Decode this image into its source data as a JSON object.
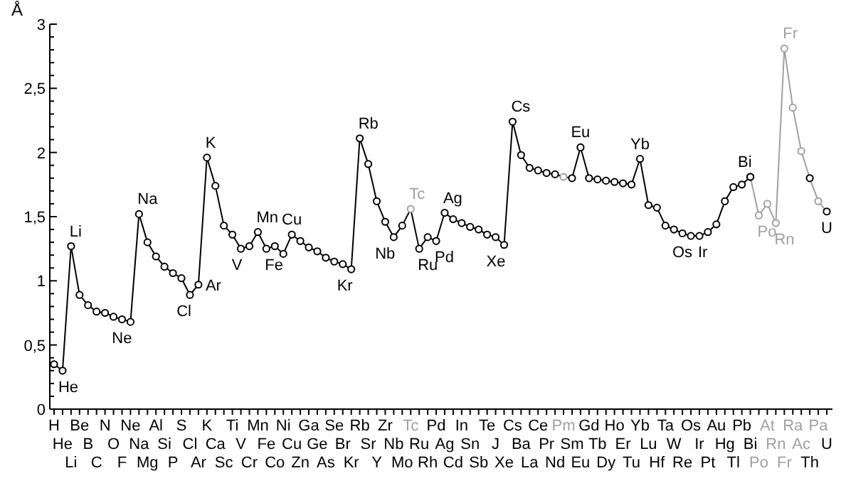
{
  "chart_data": {
    "type": "line",
    "ylabel": "Å",
    "categories": [
      "H",
      "He",
      "Li",
      "Be",
      "B",
      "C",
      "N",
      "O",
      "F",
      "Ne",
      "Na",
      "Mg",
      "Al",
      "Si",
      "P",
      "S",
      "Cl",
      "Ar",
      "K",
      "Ca",
      "Sc",
      "Ti",
      "V",
      "Cr",
      "Mn",
      "Fe",
      "Co",
      "Ni",
      "Cu",
      "Zn",
      "Ga",
      "Ge",
      "As",
      "Se",
      "Br",
      "Kr",
      "Rb",
      "Sr",
      "Y",
      "Zr",
      "Nb",
      "Mo",
      "Tc",
      "Ru",
      "Rh",
      "Pd",
      "Ag",
      "Cd",
      "In",
      "Sn",
      "Sb",
      "Te",
      "J",
      "Xe",
      "Cs",
      "Ba",
      "La",
      "Ce",
      "Pr",
      "Nd",
      "Pm",
      "Sm",
      "Eu",
      "Gd",
      "Tb",
      "Dy",
      "Ho",
      "Er",
      "Tu",
      "Yb",
      "Lu",
      "Hf",
      "Ta",
      "W",
      "Re",
      "Os",
      "Ir",
      "Pt",
      "Au",
      "Hg",
      "Tl",
      "Pb",
      "Bi",
      "Po",
      "At",
      "Rn",
      "Fr",
      "Ra",
      "Ac",
      "Th",
      "Pa",
      "U"
    ],
    "series": [
      {
        "color": "#000000",
        "values": [
          0.35,
          0.3,
          1.27,
          0.89,
          0.81,
          0.76,
          0.75,
          0.72,
          0.7,
          0.68,
          1.52,
          1.3,
          1.19,
          1.11,
          1.06,
          1.02,
          0.89,
          0.97,
          1.96,
          1.74,
          1.43,
          1.36,
          1.25,
          1.27,
          1.38,
          1.25,
          1.27,
          1.21,
          1.36,
          1.31,
          1.26,
          1.23,
          1.18,
          1.15,
          1.13,
          1.09,
          2.11,
          1.91,
          1.62,
          1.46,
          1.34,
          1.43,
          1.56,
          1.25,
          1.34,
          1.31,
          1.53,
          1.48,
          1.45,
          1.42,
          1.4,
          1.36,
          1.34,
          1.28,
          2.24,
          1.98,
          1.88,
          1.86,
          1.84,
          1.83,
          1.81,
          1.8,
          2.04,
          1.8,
          1.79,
          1.78,
          1.77,
          1.76,
          1.75,
          1.95,
          1.59,
          1.57,
          1.43,
          1.4,
          1.37,
          1.35,
          1.35,
          1.38,
          1.44,
          1.62,
          1.73,
          1.75,
          1.81,
          null,
          null,
          null,
          null,
          null,
          null,
          null,
          null,
          null
        ],
        "colors": [
          "#000000",
          "#000000",
          "#000000",
          "#000000",
          "#000000",
          "#000000",
          "#000000",
          "#000000",
          "#000000",
          "#000000",
          "#000000",
          "#000000",
          "#000000",
          "#000000",
          "#000000",
          "#000000",
          "#000000",
          "#000000",
          "#000000",
          "#000000",
          "#000000",
          "#000000",
          "#000000",
          "#000000",
          "#000000",
          "#000000",
          "#000000",
          "#000000",
          "#000000",
          "#000000",
          "#000000",
          "#000000",
          "#000000",
          "#000000",
          "#000000",
          "#000000",
          "#000000",
          "#000000",
          "#000000",
          "#000000",
          "#000000",
          "#000000",
          "#a0a0a0",
          "#000000",
          "#000000",
          "#000000",
          "#000000",
          "#000000",
          "#000000",
          "#000000",
          "#000000",
          "#000000",
          "#000000",
          "#000000",
          "#000000",
          "#000000",
          "#000000",
          "#000000",
          "#000000",
          "#000000",
          "#a0a0a0",
          "#000000",
          "#000000",
          "#000000",
          "#000000",
          "#000000",
          "#000000",
          "#000000",
          "#000000",
          "#000000",
          "#000000",
          "#000000",
          "#000000",
          "#000000",
          "#000000",
          "#000000",
          "#000000",
          "#000000",
          "#000000",
          "#000000",
          "#000000",
          "#000000",
          "#000000",
          null,
          null,
          null,
          null,
          null,
          null,
          null,
          null,
          null
        ]
      },
      {
        "color": "#a0a0a0",
        "values": [
          null,
          null,
          null,
          null,
          null,
          null,
          null,
          null,
          null,
          null,
          null,
          null,
          null,
          null,
          null,
          null,
          null,
          null,
          null,
          null,
          null,
          null,
          null,
          null,
          null,
          null,
          null,
          null,
          null,
          null,
          null,
          null,
          null,
          null,
          null,
          null,
          null,
          null,
          null,
          null,
          null,
          null,
          null,
          null,
          null,
          null,
          null,
          null,
          null,
          null,
          null,
          null,
          null,
          null,
          null,
          null,
          null,
          null,
          null,
          null,
          null,
          null,
          null,
          null,
          null,
          null,
          null,
          null,
          null,
          null,
          null,
          null,
          null,
          null,
          null,
          null,
          null,
          null,
          null,
          null,
          null,
          null,
          1.81,
          1.51,
          1.6,
          1.45,
          2.81,
          2.35,
          2.01,
          1.8,
          1.62,
          1.54
        ],
        "colors": [
          null,
          null,
          null,
          null,
          null,
          null,
          null,
          null,
          null,
          null,
          null,
          null,
          null,
          null,
          null,
          null,
          null,
          null,
          null,
          null,
          null,
          null,
          null,
          null,
          null,
          null,
          null,
          null,
          null,
          null,
          null,
          null,
          null,
          null,
          null,
          null,
          null,
          null,
          null,
          null,
          null,
          null,
          null,
          null,
          null,
          null,
          null,
          null,
          null,
          null,
          null,
          null,
          null,
          null,
          null,
          null,
          null,
          null,
          null,
          null,
          null,
          null,
          null,
          null,
          null,
          null,
          null,
          null,
          null,
          null,
          null,
          null,
          null,
          null,
          null,
          null,
          null,
          null,
          null,
          null,
          null,
          null,
          "#000000",
          "#a0a0a0",
          "#a0a0a0",
          "#a0a0a0",
          "#a0a0a0",
          "#a0a0a0",
          "#a0a0a0",
          "#000000",
          "#a0a0a0",
          "#000000"
        ]
      }
    ],
    "ylim": [
      0,
      3
    ],
    "yticks": [
      0,
      {
        "value": 0.1,
        "label": null
      },
      {
        "value": 0.2,
        "label": null
      },
      {
        "value": 0.3,
        "label": null
      },
      {
        "value": 0.4,
        "label": null
      },
      {
        "value": 0.5,
        "label": "0,5"
      },
      {
        "value": 0.6,
        "label": null
      },
      {
        "value": 0.7,
        "label": null
      },
      {
        "value": 0.8,
        "label": null
      },
      {
        "value": 0.9,
        "label": null
      },
      1,
      {
        "value": 1.1,
        "label": null
      },
      {
        "value": 1.2,
        "label": null
      },
      {
        "value": 1.3,
        "label": null
      },
      {
        "value": 1.4,
        "label": null
      },
      {
        "value": 1.5,
        "label": "1,5"
      },
      {
        "value": 1.6,
        "label": null
      },
      {
        "value": 1.7,
        "label": null
      },
      {
        "value": 1.8,
        "label": null
      },
      {
        "value": 1.9,
        "label": null
      },
      2,
      {
        "value": 2.1,
        "label": null
      },
      {
        "value": 2.2,
        "label": null
      },
      {
        "value": 2.3,
        "label": null
      },
      {
        "value": 2.4,
        "label": null
      },
      {
        "value": 2.5,
        "label": "2,5"
      },
      {
        "value": 2.6,
        "label": null
      },
      {
        "value": 2.7,
        "label": null
      },
      {
        "value": 2.8,
        "label": null
      },
      {
        "value": 2.9,
        "label": null
      },
      3
    ],
    "marker": "circle",
    "line_style": "solid",
    "grid": false,
    "legend": false,
    "annotations": [
      {
        "text": "He",
        "x": "He",
        "y": 0.3
      },
      {
        "text": "Li",
        "x": "Li",
        "y": 1.27
      },
      {
        "text": "Ne",
        "x": "Ne",
        "y": 0.68
      },
      {
        "text": "Na",
        "x": "Na",
        "y": 1.52
      },
      {
        "text": "Cl",
        "x": "Cl",
        "y": 0.89
      },
      {
        "text": "Ar",
        "x": "Ar",
        "y": 0.97
      },
      {
        "text": "K",
        "x": "K",
        "y": 1.96
      },
      {
        "text": "Mn",
        "x": "Mn",
        "y": 1.38
      },
      {
        "text": "V",
        "x": "V",
        "y": 1.25
      },
      {
        "text": "Fe",
        "x": "Fe",
        "y": 1.25
      },
      {
        "text": "Cu",
        "x": "Cu",
        "y": 1.36
      },
      {
        "text": "Rb",
        "x": "Rb",
        "y": 2.11
      },
      {
        "text": "Kr",
        "x": "Kr",
        "y": 1.09
      },
      {
        "text": "Tc",
        "x": "Tc",
        "y": 1.56
      },
      {
        "text": "Nb",
        "x": "Nb",
        "y": 1.34
      },
      {
        "text": "Ru",
        "x": "Ru",
        "y": 1.25
      },
      {
        "text": "Ag",
        "x": "Ag",
        "y": 1.53
      },
      {
        "text": "Pd",
        "x": "Pd",
        "y": 1.31
      },
      {
        "text": "Cs",
        "x": "Cs",
        "y": 2.24
      },
      {
        "text": "Xe",
        "x": "Xe",
        "y": 1.28
      },
      {
        "text": "Eu",
        "x": "Eu",
        "y": 2.04
      },
      {
        "text": "Yb",
        "x": "Yb",
        "y": 1.95
      },
      {
        "text": "Os",
        "x": "Os",
        "y": 1.35
      },
      {
        "text": "Ir",
        "x": "Ir",
        "y": 1.35
      },
      {
        "text": "Bi",
        "x": "Bi",
        "y": 1.81
      },
      {
        "text": "Po",
        "x": "Po",
        "y": 1.51
      },
      {
        "text": "Rn",
        "x": "Rn",
        "y": 1.45
      },
      {
        "text": "Fr",
        "x": "Fr",
        "y": 2.81
      },
      {
        "text": "U",
        "x": "U",
        "y": 1.54
      }
    ]
  }
}
